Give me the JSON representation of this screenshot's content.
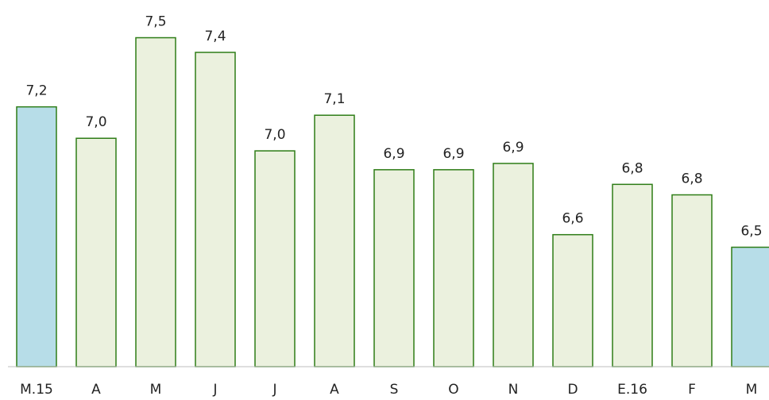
{
  "chart_data": {
    "type": "bar",
    "categories": [
      "M.15",
      "A",
      "M",
      "J",
      "J",
      "A",
      "S",
      "O",
      "N",
      "D",
      "E.16",
      "F",
      "M"
    ],
    "values": [
      7.17,
      7.02,
      7.5,
      7.43,
      6.96,
      7.13,
      6.87,
      6.87,
      6.9,
      6.56,
      6.8,
      6.75,
      6.5
    ],
    "value_labels": [
      "7,2",
      "7,0",
      "7,5",
      "7,4",
      "7,0",
      "7,1",
      "6,9",
      "6,9",
      "6,9",
      "6,6",
      "6,8",
      "6,8",
      "6,5"
    ],
    "colors": [
      "#b7dde8",
      "#ebf1de",
      "#ebf1de",
      "#ebf1de",
      "#ebf1de",
      "#ebf1de",
      "#ebf1de",
      "#ebf1de",
      "#ebf1de",
      "#ebf1de",
      "#ebf1de",
      "#ebf1de",
      "#b7dde8"
    ],
    "edge_color": "#2e7d17",
    "ylim": [
      5.93,
      7.68
    ]
  }
}
